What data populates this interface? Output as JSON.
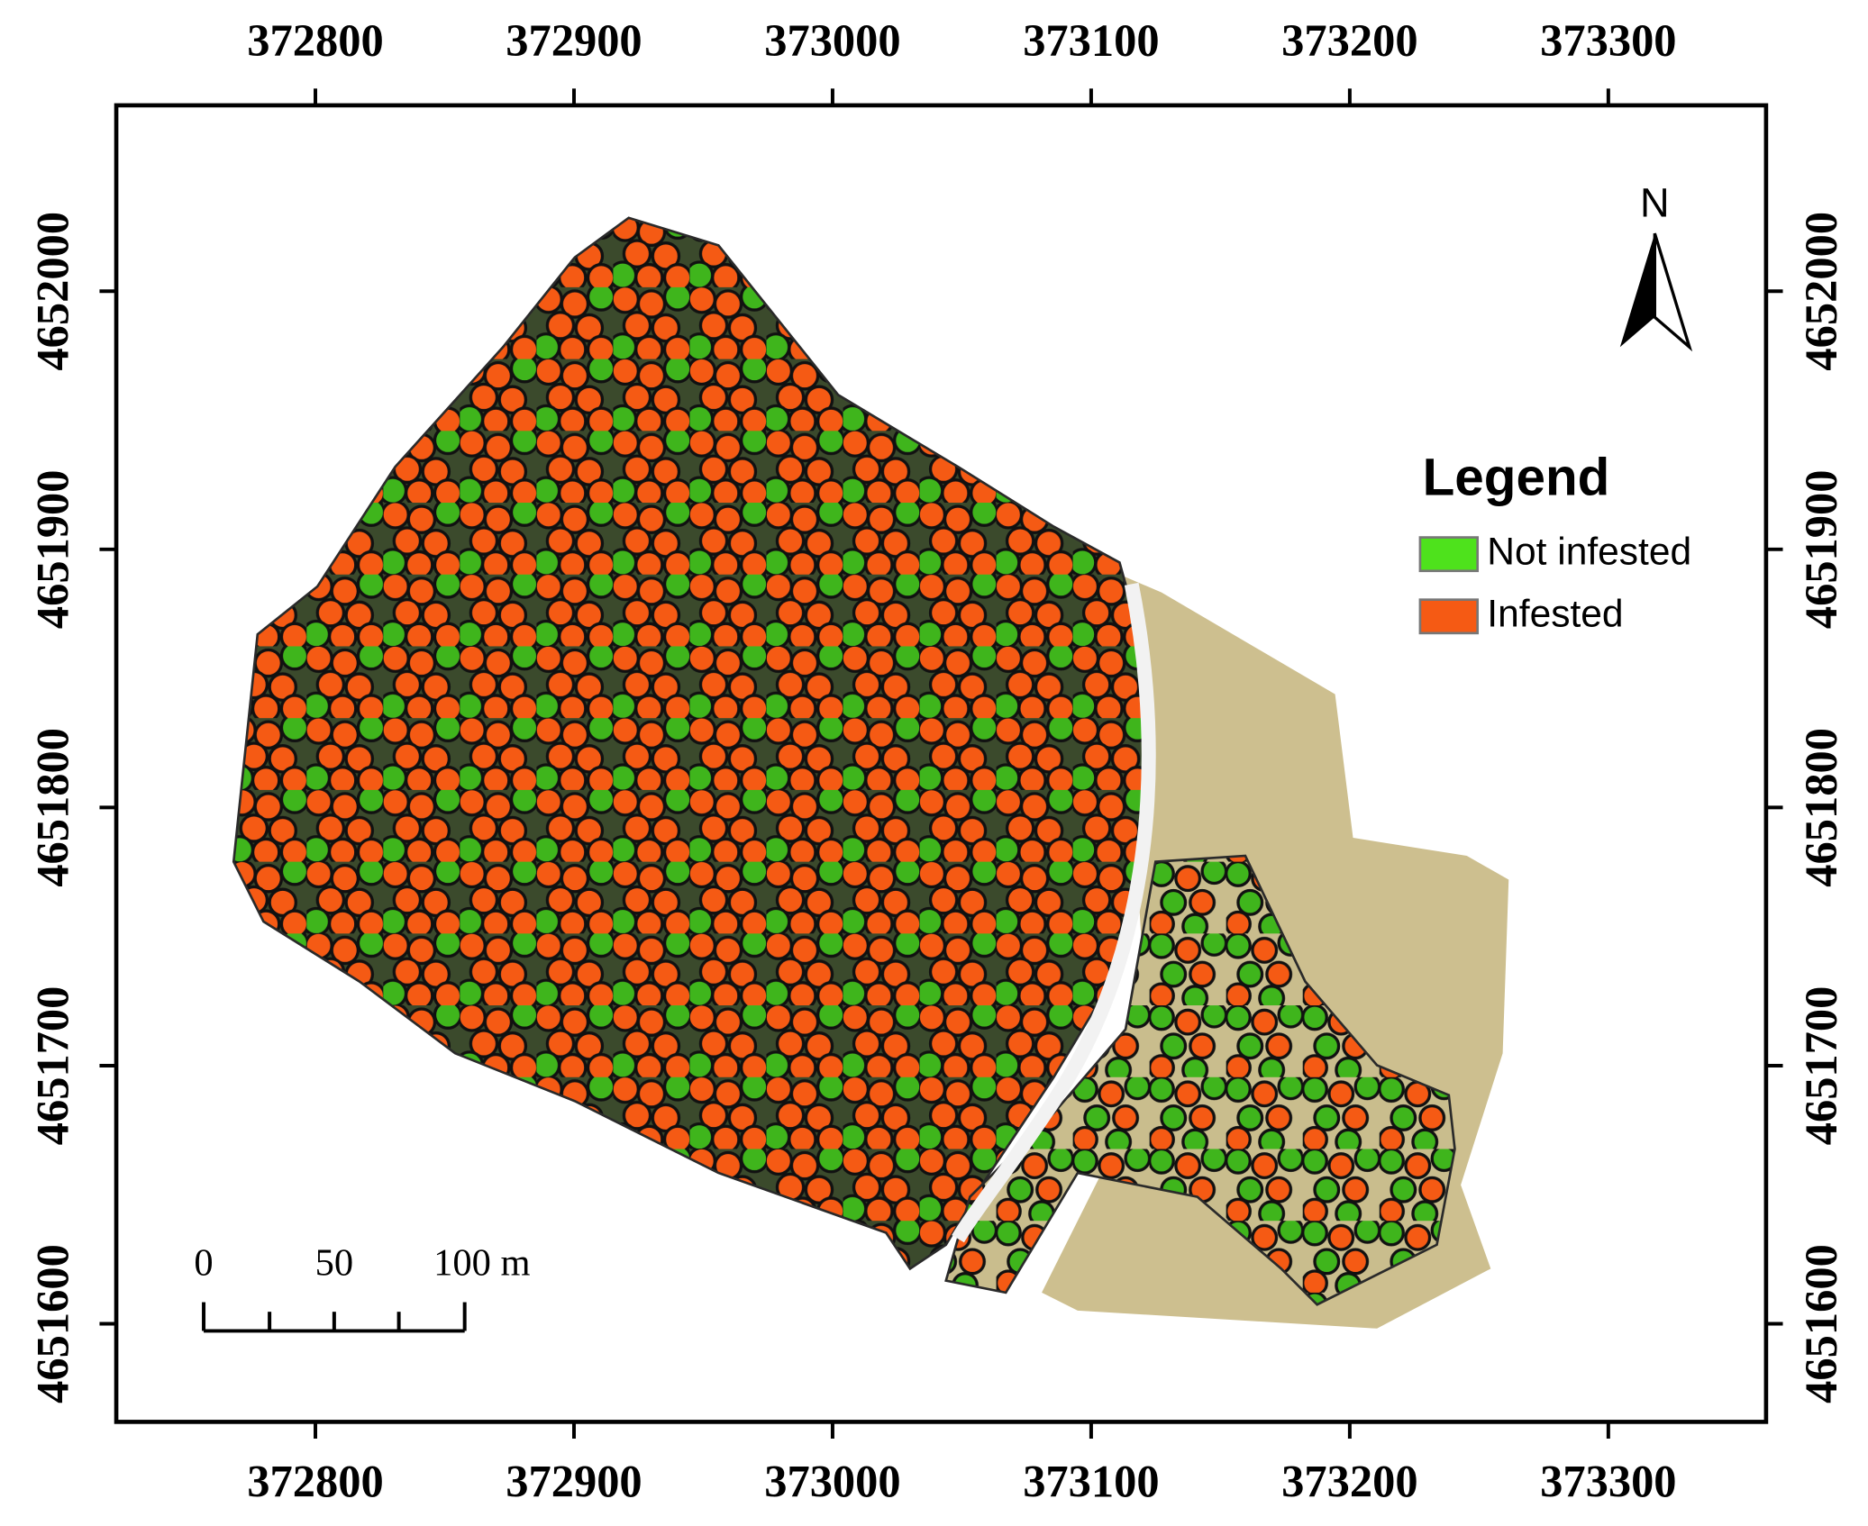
{
  "chart_data": {
    "type": "map",
    "xlim": [
      372723,
      373361
    ],
    "ylim": [
      4651562,
      4652072
    ],
    "xticks": [
      372800,
      372900,
      373000,
      373100,
      373200,
      373300
    ],
    "yticks": [
      4651600,
      4651700,
      4651800,
      4651900,
      4652000
    ],
    "north_label": "N",
    "legend": {
      "title": "Legend",
      "items": [
        {
          "name": "Not infested",
          "color": "#4ee21c"
        },
        {
          "name": "Infested",
          "color": "#f55a14"
        }
      ]
    },
    "scale_bar": {
      "labels": [
        "0",
        "50",
        "100 m"
      ]
    }
  }
}
